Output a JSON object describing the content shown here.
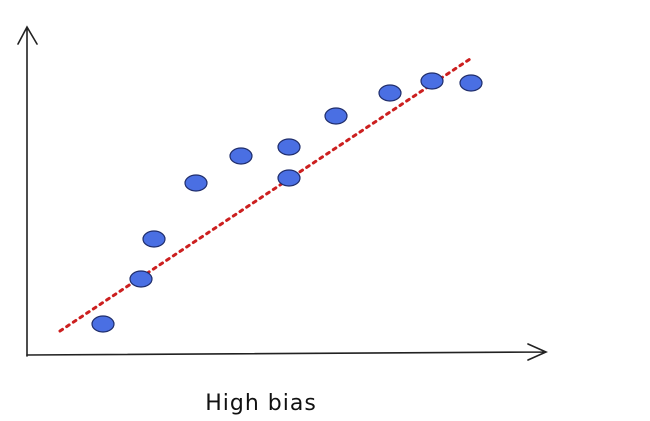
{
  "caption": "High bias"
}
